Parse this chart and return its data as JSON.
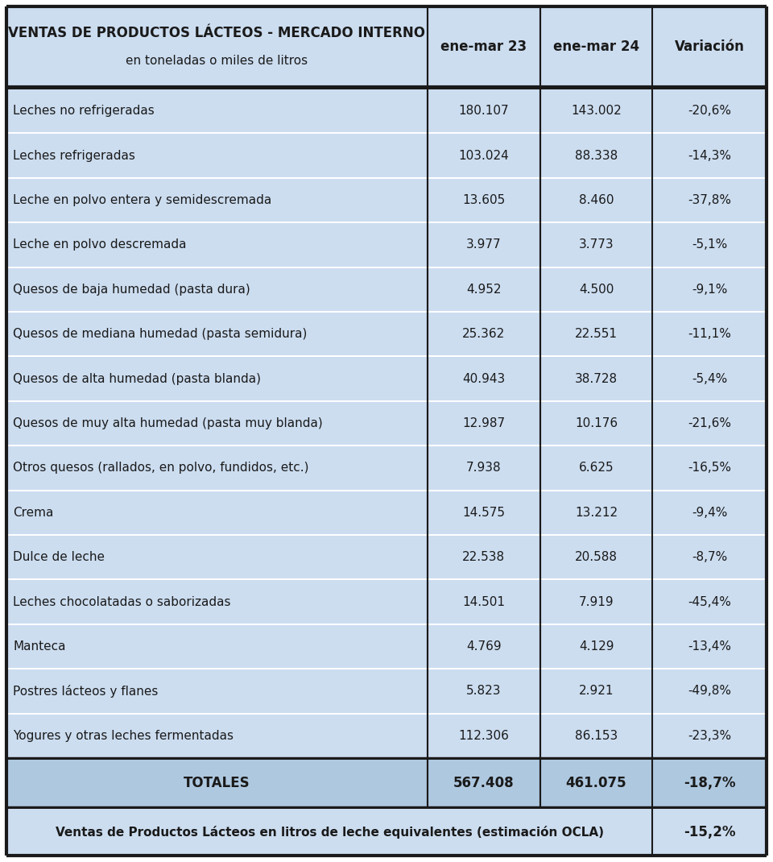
{
  "title_line1": "VENTAS DE PRODUCTOS LÁCTEOS - MERCADO INTERNO",
  "title_line2": "en toneladas o miles de litros",
  "col_headers": [
    "ene-mar 23",
    "ene-mar 24",
    "Variación"
  ],
  "rows": [
    [
      "Leches no refrigeradas",
      "180.107",
      "143.002",
      "-20,6%"
    ],
    [
      "Leches refrigeradas",
      "103.024",
      "88.338",
      "-14,3%"
    ],
    [
      "Leche en polvo entera y semidescremada",
      "13.605",
      "8.460",
      "-37,8%"
    ],
    [
      "Leche en polvo descremada",
      "3.977",
      "3.773",
      "-5,1%"
    ],
    [
      "Quesos de baja humedad (pasta dura)",
      "4.952",
      "4.500",
      "-9,1%"
    ],
    [
      "Quesos de mediana humedad (pasta semidura)",
      "25.362",
      "22.551",
      "-11,1%"
    ],
    [
      "Quesos de alta humedad (pasta blanda)",
      "40.943",
      "38.728",
      "-5,4%"
    ],
    [
      "Quesos de muy alta humedad (pasta muy blanda)",
      "12.987",
      "10.176",
      "-21,6%"
    ],
    [
      "Otros quesos (rallados, en polvo, fundidos, etc.)",
      "7.938",
      "6.625",
      "-16,5%"
    ],
    [
      "Crema",
      "14.575",
      "13.212",
      "-9,4%"
    ],
    [
      "Dulce de leche",
      "22.538",
      "20.588",
      "-8,7%"
    ],
    [
      "Leches chocolatadas o saborizadas",
      "14.501",
      "7.919",
      "-45,4%"
    ],
    [
      "Manteca",
      "4.769",
      "4.129",
      "-13,4%"
    ],
    [
      "Postres lácteos y flanes",
      "5.823",
      "2.921",
      "-49,8%"
    ],
    [
      "Yogures y otras leches fermentadas",
      "112.306",
      "86.153",
      "-23,3%"
    ]
  ],
  "totals_row": [
    "TOTALES",
    "567.408",
    "461.075",
    "-18,7%"
  ],
  "footer_label": "Ventas de Productos Lácteos en litros de leche equivalentes (estimación OCLA)",
  "footer_value": "-15,2%",
  "header_bg": "#ccddf0",
  "data_bg": "#ccddf0",
  "totals_bg": "#aec8e0",
  "footer_bg": "#ccddf0",
  "separator_color": "#ffffff",
  "border_dark": "#1a1a1a",
  "text_color": "#1a1a1a",
  "header_fontsize": 12,
  "cell_fontsize": 11,
  "totals_fontsize": 12,
  "footer_fontsize": 11,
  "col_props": [
    0.554,
    0.148,
    0.148,
    0.15
  ]
}
